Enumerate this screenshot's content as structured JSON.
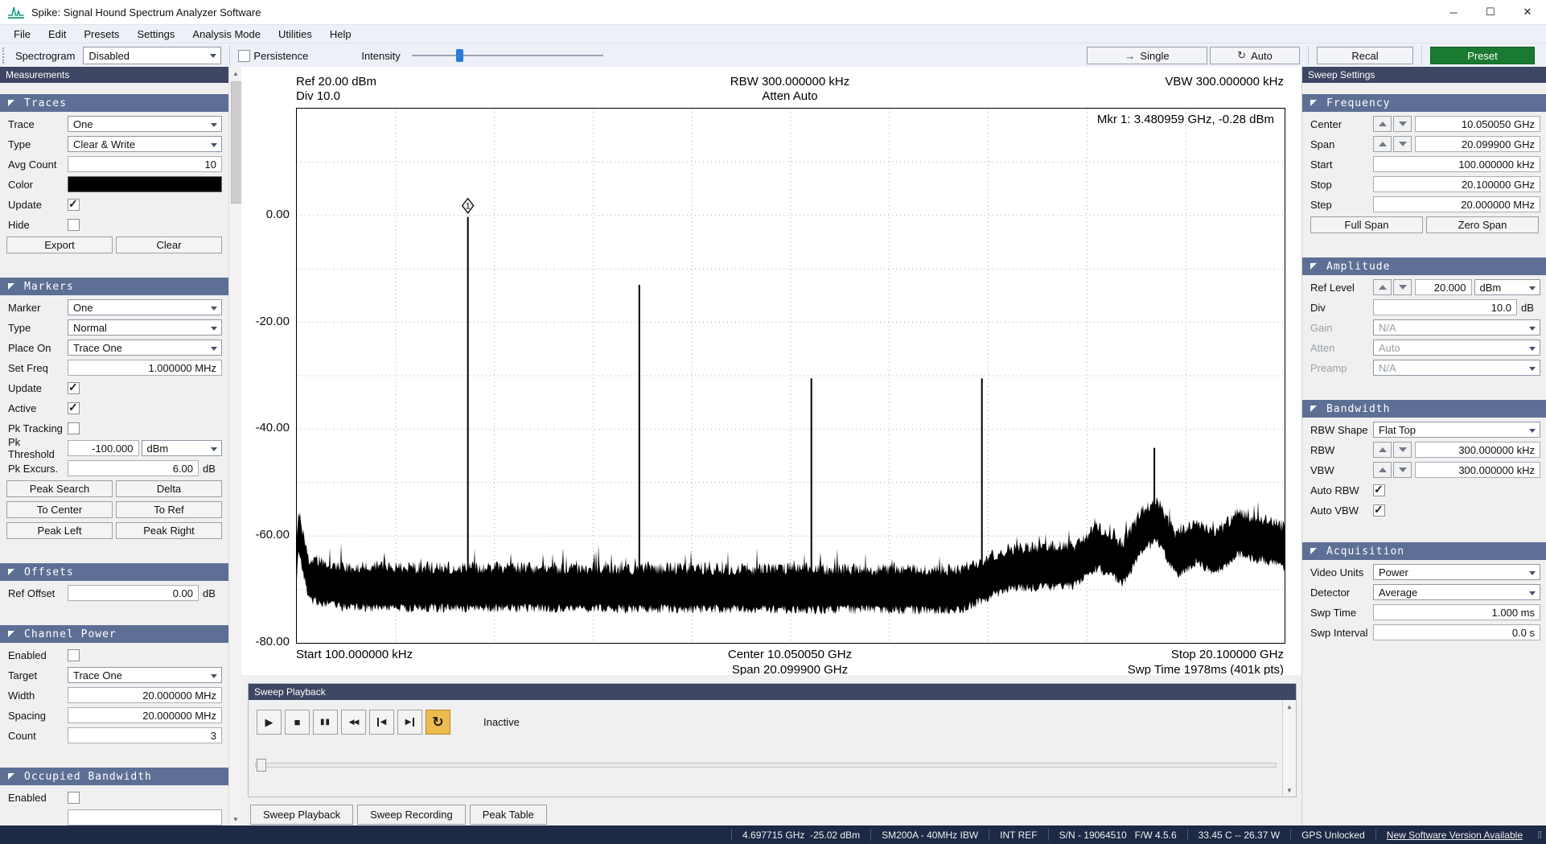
{
  "window": {
    "title": "Spike: Signal Hound Spectrum Analyzer Software"
  },
  "menu": {
    "items": [
      "File",
      "Edit",
      "Presets",
      "Settings",
      "Analysis Mode",
      "Utilities",
      "Help"
    ]
  },
  "toolbar": {
    "spectrogram_label": "Spectrogram",
    "spectrogram_value": "Disabled",
    "persistence_label": "Persistence",
    "persistence_checked": false,
    "intensity_label": "Intensity",
    "single_label": "Single",
    "auto_label": "Auto",
    "recal_label": "Recal",
    "preset_label": "Preset",
    "preset_color": "#1b7a31",
    "intensity_handle_color": "#2a7cd8"
  },
  "left": {
    "measurements_title": "Measurements",
    "traces": {
      "title": "Traces",
      "trace_label": "Trace",
      "trace_value": "One",
      "type_label": "Type",
      "type_value": "Clear & Write",
      "avg_label": "Avg Count",
      "avg_value": "10",
      "color_label": "Color",
      "trace_color": "#000000",
      "update_label": "Update",
      "update_checked": true,
      "hide_label": "Hide",
      "hide_checked": false,
      "export_label": "Export",
      "clear_label": "Clear"
    },
    "markers": {
      "title": "Markers",
      "marker_label": "Marker",
      "marker_value": "One",
      "type_label": "Type",
      "type_value": "Normal",
      "place_label": "Place On",
      "place_value": "Trace One",
      "setfreq_label": "Set Freq",
      "setfreq_value": "1.000000 MHz",
      "update_label": "Update",
      "update_checked": true,
      "active_label": "Active",
      "active_checked": true,
      "pktrack_label": "Pk Tracking",
      "pktrack_checked": false,
      "pkthresh_label": "Pk Threshold",
      "pkthresh_value": "-100.000",
      "pkthresh_unit": "dBm",
      "pkexc_label": "Pk Excurs.",
      "pkexc_value": "6.00",
      "pkexc_unit": "dB",
      "btn_peak_search": "Peak Search",
      "btn_delta": "Delta",
      "btn_to_center": "To Center",
      "btn_to_ref": "To Ref",
      "btn_peak_left": "Peak Left",
      "btn_peak_right": "Peak Right"
    },
    "offsets": {
      "title": "Offsets",
      "ref_offset_label": "Ref Offset",
      "ref_offset_value": "0.00",
      "unit": "dB"
    },
    "channel_power": {
      "title": "Channel Power",
      "enabled_label": "Enabled",
      "enabled_checked": false,
      "target_label": "Target",
      "target_value": "Trace One",
      "width_label": "Width",
      "width_value": "20.000000 MHz",
      "spacing_label": "Spacing",
      "spacing_value": "20.000000 MHz",
      "count_label": "Count",
      "count_value": "3"
    },
    "occupied_bw": {
      "title": "Occupied Bandwidth",
      "enabled_label": "Enabled",
      "enabled_checked": false
    }
  },
  "right": {
    "header": "Sweep Settings",
    "frequency": {
      "title": "Frequency",
      "center_label": "Center",
      "center_value": "10.050050 GHz",
      "span_label": "Span",
      "span_value": "20.099900 GHz",
      "start_label": "Start",
      "start_value": "100.000000 kHz",
      "stop_label": "Stop",
      "stop_value": "20.100000 GHz",
      "step_label": "Step",
      "step_value": "20.000000 MHz",
      "full_span": "Full Span",
      "zero_span": "Zero Span"
    },
    "amplitude": {
      "title": "Amplitude",
      "ref_label": "Ref Level",
      "ref_value": "20.000",
      "ref_unit": "dBm",
      "div_label": "Div",
      "div_value": "10.0",
      "div_unit": "dB",
      "gain_label": "Gain",
      "gain_value": "N/A",
      "atten_label": "Atten",
      "atten_value": "Auto",
      "preamp_label": "Preamp",
      "preamp_value": "N/A"
    },
    "bandwidth": {
      "title": "Bandwidth",
      "shape_label": "RBW Shape",
      "shape_value": "Flat Top",
      "rbw_label": "RBW",
      "rbw_value": "300.000000 kHz",
      "vbw_label": "VBW",
      "vbw_value": "300.000000 kHz",
      "auto_rbw_label": "Auto RBW",
      "auto_rbw_checked": true,
      "auto_vbw_label": "Auto VBW",
      "auto_vbw_checked": true
    },
    "acquisition": {
      "title": "Acquisition",
      "vu_label": "Video Units",
      "vu_value": "Power",
      "det_label": "Detector",
      "det_value": "Average",
      "swptime_label": "Swp Time",
      "swptime_value": "1.000 ms",
      "swpint_label": "Swp Interval",
      "swpint_value": "0.0 s"
    }
  },
  "graticule": {
    "ref": "Ref 20.00 dBm",
    "div": "Div 10.0",
    "rbw": "RBW 300.000000 kHz",
    "atten": "Atten Auto",
    "vbw": "VBW 300.000000 kHz",
    "marker_readout": "Mkr 1: 3.480959 GHz, -0.28 dBm",
    "start": "Start 100.000000 kHz",
    "center": "Center 10.050050 GHz",
    "span": "Span 20.099900 GHz",
    "stop": "Stop 20.100000 GHz",
    "swp_time": "Swp Time 1978ms (401k pts)"
  },
  "chart_data": {
    "type": "line",
    "title": "Swept spectrum trace",
    "trace_color": "#000000",
    "x_axis": {
      "min_ghz": 0.0001,
      "max_ghz": 20.1,
      "divisions": 10,
      "start_label": "Start 100.000000 kHz",
      "stop_label": "Stop 20.100000 GHz"
    },
    "y_axis": {
      "ref_dbm": 20,
      "div_db": 10,
      "min_dbm": -80,
      "max_dbm": 20,
      "tick_labels": [
        "0.00",
        "-20.00",
        "-40.00",
        "-60.00",
        "-80.00"
      ],
      "tick_values": [
        0,
        -20,
        -40,
        -60,
        -80
      ]
    },
    "grid": true,
    "peaks": [
      {
        "freq_ghz": 3.480959,
        "ampl_dbm": -0.28,
        "marker": "1"
      },
      {
        "freq_ghz": 6.97,
        "ampl_dbm": -13.0
      },
      {
        "freq_ghz": 10.47,
        "ampl_dbm": -30.5
      },
      {
        "freq_ghz": 13.94,
        "ampl_dbm": -30.5
      },
      {
        "freq_ghz": 17.45,
        "ampl_dbm": -43.5
      }
    ],
    "noise_floor_points": [
      [
        0,
        -61.5
      ],
      [
        0.03,
        -56.5
      ],
      [
        0.25,
        -65.5
      ],
      [
        1.0,
        -67.0
      ],
      [
        13.5,
        -67.5
      ],
      [
        14.5,
        -63.5
      ],
      [
        15.8,
        -63.0
      ],
      [
        16.3,
        -59.5
      ],
      [
        16.8,
        -62.5
      ],
      [
        17.2,
        -56.5
      ],
      [
        17.5,
        -54.5
      ],
      [
        17.9,
        -61.0
      ],
      [
        18.3,
        -58.5
      ],
      [
        18.7,
        -60.5
      ],
      [
        19.15,
        -57.0
      ],
      [
        19.5,
        -58.0
      ],
      [
        19.9,
        -58.5
      ],
      [
        20.1,
        -59.5
      ]
    ],
    "noise_jitter_db": 2.4,
    "noise_band_db": 5.5
  },
  "playback": {
    "header": "Sweep Playback",
    "status": "Inactive",
    "buttons": [
      {
        "name": "play-button",
        "icon": "play"
      },
      {
        "name": "stop-button",
        "icon": "stop"
      },
      {
        "name": "pause-button",
        "icon": "pause"
      },
      {
        "name": "rewind-button",
        "icon": "rewind"
      },
      {
        "name": "skip-start-button",
        "icon": "skip-start"
      },
      {
        "name": "skip-end-button",
        "icon": "skip-end"
      },
      {
        "name": "loop-button",
        "icon": "loop",
        "active": true
      }
    ]
  },
  "bottom_tabs": [
    "Sweep Playback",
    "Sweep Recording",
    "Peak Table"
  ],
  "status_bar": {
    "items": [
      {
        "text": "4.697715 GHz  -25.02 dBm"
      },
      {
        "text": "SM200A - 40MHz IBW"
      },
      {
        "text": "INT REF"
      },
      {
        "text": "S/N - 19064510   F/W 4.5.6"
      },
      {
        "text": "33.45 C -- 26.37 W"
      },
      {
        "text": "GPS Unlocked"
      },
      {
        "text": "New Software Version Available",
        "link": true
      }
    ]
  }
}
